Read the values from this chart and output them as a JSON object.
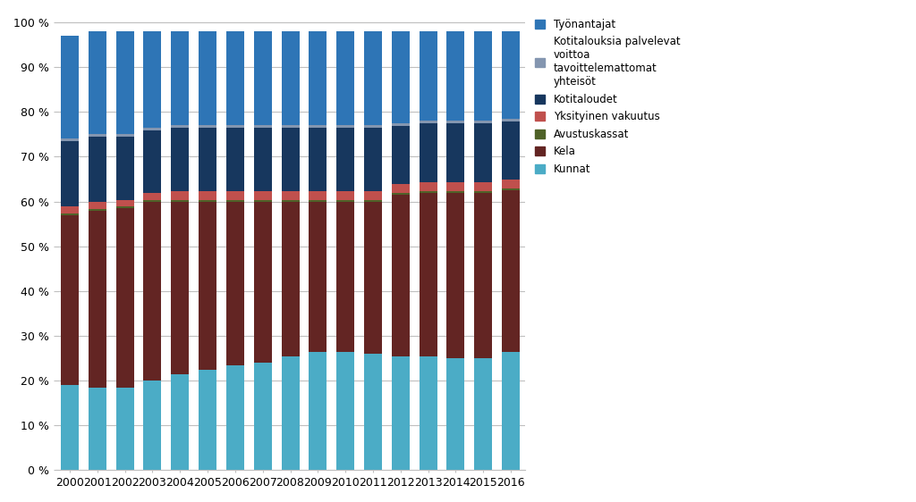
{
  "years": [
    2000,
    2001,
    2002,
    2003,
    2004,
    2005,
    2006,
    2007,
    2008,
    2009,
    2010,
    2011,
    2012,
    2013,
    2014,
    2015,
    2016
  ],
  "series": {
    "Kunnat": [
      19.0,
      18.5,
      18.5,
      20.0,
      21.5,
      22.5,
      23.5,
      24.0,
      25.5,
      26.5,
      26.5,
      26.0,
      25.5,
      25.5,
      25.0,
      25.0,
      26.5
    ],
    "Kela": [
      38.0,
      39.5,
      40.0,
      40.0,
      38.5,
      37.5,
      36.5,
      36.0,
      34.5,
      33.5,
      33.5,
      34.0,
      36.0,
      36.5,
      37.0,
      37.0,
      36.0
    ],
    "Avustuskassat": [
      0.4,
      0.4,
      0.4,
      0.4,
      0.4,
      0.4,
      0.4,
      0.4,
      0.4,
      0.4,
      0.4,
      0.4,
      0.4,
      0.4,
      0.4,
      0.4,
      0.4
    ],
    "Yksityinen vakuutus": [
      1.5,
      1.5,
      1.5,
      1.5,
      2.0,
      2.0,
      2.0,
      2.0,
      2.0,
      2.0,
      2.0,
      2.0,
      2.0,
      2.0,
      2.0,
      2.0,
      2.0
    ],
    "Kotitaloudet": [
      14.5,
      14.5,
      14.0,
      14.0,
      14.0,
      14.0,
      14.0,
      14.0,
      14.0,
      14.0,
      14.0,
      14.0,
      13.0,
      13.0,
      13.0,
      13.0,
      13.0
    ],
    "Kotitalouksia palvelevat": [
      0.6,
      0.6,
      0.6,
      0.6,
      0.6,
      0.6,
      0.6,
      0.6,
      0.6,
      0.6,
      0.6,
      0.6,
      0.6,
      0.6,
      0.6,
      0.6,
      0.6
    ],
    "Työnantajat": [
      23.0,
      23.0,
      23.0,
      21.5,
      21.0,
      21.0,
      21.0,
      21.0,
      21.0,
      21.0,
      21.0,
      21.0,
      20.5,
      20.0,
      20.0,
      20.0,
      19.5
    ]
  },
  "colors": {
    "Kunnat": "#4bacc6",
    "Kela": "#632523",
    "Avustuskassat": "#4f6228",
    "Yksityinen vakuutus": "#c0504d",
    "Kotitaloudet": "#17375e",
    "Kotitalouksia palvelevat": "#8496b0",
    "Työnantajat": "#2e75b6"
  },
  "bar_colors_kunnat": "#4bacc6",
  "legend_labels": {
    "Työnantajat": "Työnantajat",
    "Kotitalouksia palvelevat": "Kotitalouksia palvelevat\nvoittoa\ntavoittelemattomat\nyhteisöt",
    "Kotitaloudet": "Kotitaloudet",
    "Yksityinen vakuutus": "Yksityinen vakuutus",
    "Avustuskassat": "Avustuskassat",
    "Kela": "Kela",
    "Kunnat": "Kunnat"
  },
  "yticks": [
    0,
    10,
    20,
    30,
    40,
    50,
    60,
    70,
    80,
    90,
    100
  ],
  "ytick_labels": [
    "0 %",
    "10 %",
    "20 %",
    "30 %",
    "40 %",
    "50 %",
    "60 %",
    "70 %",
    "80 %",
    "90 %",
    "100 %"
  ],
  "background_color": "#ffffff",
  "grid_color": "#bfbfbf",
  "series_order": [
    "Kunnat",
    "Kela",
    "Avustuskassat",
    "Yksityinen vakuutus",
    "Kotitaloudet",
    "Kotitalouksia palvelevat",
    "Työnantajat"
  ],
  "legend_order": [
    "Työnantajat",
    "Kotitalouksia palvelevat",
    "Kotitaloudet",
    "Yksityinen vakuutus",
    "Avustuskassat",
    "Kela",
    "Kunnat"
  ]
}
